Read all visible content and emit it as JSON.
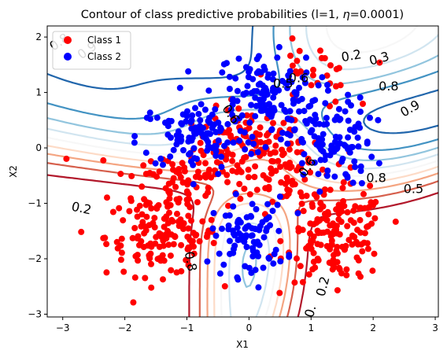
{
  "chart_data": {
    "type": "scatter",
    "title_prefix": "Contour of class predictive probabilities (l=1, ",
    "title_symbol": "η",
    "title_suffix": "=0.0001)",
    "xlabel": "X1",
    "ylabel": "X2",
    "xlim": [
      -3.25,
      3.05
    ],
    "ylim": [
      -3.05,
      2.2
    ],
    "x_ticks": [
      -3,
      -2,
      -1,
      0,
      1,
      2,
      3
    ],
    "y_ticks": [
      -3,
      -2,
      -1,
      0,
      1,
      2
    ],
    "x_tick_labels": [
      "−3",
      "−2",
      "−1",
      "0",
      "1",
      "2",
      "3"
    ],
    "y_tick_labels": [
      "−3",
      "−2",
      "−1",
      "0",
      "1",
      "2"
    ],
    "grid": false,
    "legend_position": "top-left",
    "series": [
      {
        "name": "Class 1",
        "color": "#ff0000",
        "clusters": [
          {
            "cx": 0.0,
            "cy": 0.0,
            "sx": 0.45,
            "sy": 0.35,
            "n": 120
          },
          {
            "cx": -1.2,
            "cy": -0.6,
            "sx": 0.5,
            "sy": 0.35,
            "n": 70
          },
          {
            "cx": 0.7,
            "cy": -0.6,
            "sx": 0.45,
            "sy": 0.3,
            "n": 50
          },
          {
            "cx": -1.4,
            "cy": -1.6,
            "sx": 0.45,
            "sy": 0.35,
            "n": 130
          },
          {
            "cx": 1.4,
            "cy": -1.6,
            "sx": 0.4,
            "sy": 0.4,
            "n": 150
          },
          {
            "cx": 1.0,
            "cy": 1.3,
            "sx": 0.35,
            "sy": 0.3,
            "n": 30
          }
        ]
      },
      {
        "name": "Class 2",
        "color": "#0000ff",
        "clusters": [
          {
            "cx": -0.8,
            "cy": 0.2,
            "sx": 0.5,
            "sy": 0.3,
            "n": 110
          },
          {
            "cx": 0.2,
            "cy": 1.0,
            "sx": 0.45,
            "sy": 0.35,
            "n": 120
          },
          {
            "cx": 1.3,
            "cy": 0.1,
            "sx": 0.35,
            "sy": 0.4,
            "n": 110
          },
          {
            "cx": 0.0,
            "cy": -1.6,
            "sx": 0.3,
            "sy": 0.35,
            "n": 90
          }
        ]
      }
    ],
    "contour_colors": {
      "0.1": "#b2182b",
      "0.2": "#d6604d",
      "0.3": "#f4a582",
      "0.4": "#fddbc7",
      "0.5": "#f7f7f7",
      "0.6": "#d1e5f0",
      "0.7": "#92c5de",
      "0.8": "#4393c3",
      "0.9": "#2166ac"
    },
    "contour_labels": [
      {
        "text": "0.8",
        "x": -3.05,
        "y": 1.9,
        "rot": 35
      },
      {
        "text": "0.9",
        "x": -2.6,
        "y": 1.75,
        "rot": 35
      },
      {
        "text": "0.2",
        "x": 1.65,
        "y": 1.65,
        "rot": 10
      },
      {
        "text": "0.3",
        "x": 2.1,
        "y": 1.6,
        "rot": 15
      },
      {
        "text": "0.8",
        "x": 2.25,
        "y": 1.1,
        "rot": 0
      },
      {
        "text": "0.9",
        "x": 2.6,
        "y": 0.7,
        "rot": 30
      },
      {
        "text": "0.5",
        "x": 0.55,
        "y": 1.15,
        "rot": 0
      },
      {
        "text": "0.6",
        "x": 0.8,
        "y": 1.25,
        "rot": 0
      },
      {
        "text": "0.6",
        "x": -0.3,
        "y": 0.6,
        "rot": -55
      },
      {
        "text": "0.6",
        "x": 0.95,
        "y": -0.35,
        "rot": 55
      },
      {
        "text": "0.8",
        "x": 2.05,
        "y": -0.55,
        "rot": 0
      },
      {
        "text": "0.5",
        "x": 2.65,
        "y": -0.75,
        "rot": 0
      },
      {
        "text": "0.2",
        "x": -2.7,
        "y": -1.1,
        "rot": -12
      },
      {
        "text": "0.8",
        "x": -0.95,
        "y": -2.05,
        "rot": -80
      },
      {
        "text": "0.2",
        "x": 1.2,
        "y": -2.5,
        "rot": 75
      },
      {
        "text": "0.",
        "x": 1.0,
        "y": -2.95,
        "rot": 75
      }
    ]
  }
}
